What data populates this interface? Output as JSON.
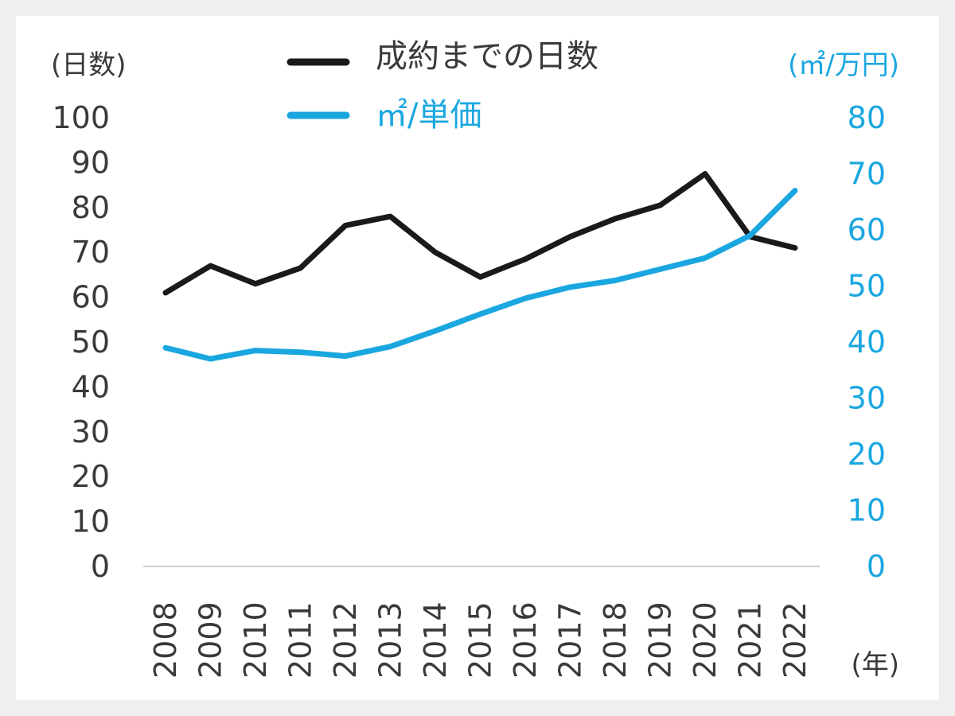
{
  "chart_data": {
    "type": "line",
    "x": [
      "2008",
      "2009",
      "2010",
      "2011",
      "2012",
      "2013",
      "2014",
      "2015",
      "2016",
      "2017",
      "2018",
      "2019",
      "2020",
      "2021",
      "2022"
    ],
    "series": [
      {
        "name": "成約までの日数",
        "axis": "left",
        "color": "#1a1a1a",
        "values": [
          61,
          67,
          63,
          66.5,
          76,
          78,
          70,
          64.5,
          68.5,
          73.5,
          77.5,
          80.5,
          87.5,
          73.5,
          71
        ]
      },
      {
        "name": "㎡/単価",
        "axis": "right",
        "color": "#1aa7e0",
        "values": [
          39,
          37,
          38.5,
          38.2,
          37.5,
          39.2,
          42,
          45,
          47.8,
          49.8,
          51,
          53,
          55,
          59,
          67
        ]
      }
    ],
    "y_left": {
      "label": "(日数)",
      "ylim": [
        0,
        100
      ],
      "ticks": [
        "0",
        "10",
        "20",
        "30",
        "40",
        "50",
        "60",
        "70",
        "80",
        "90",
        "100"
      ]
    },
    "y_right": {
      "label": "(㎡/万円)",
      "ylim": [
        0,
        80
      ],
      "ticks": [
        "0",
        "10",
        "20",
        "30",
        "40",
        "50",
        "60",
        "70",
        "80"
      ]
    },
    "x_unit": "(年)",
    "legend_position": "top"
  }
}
